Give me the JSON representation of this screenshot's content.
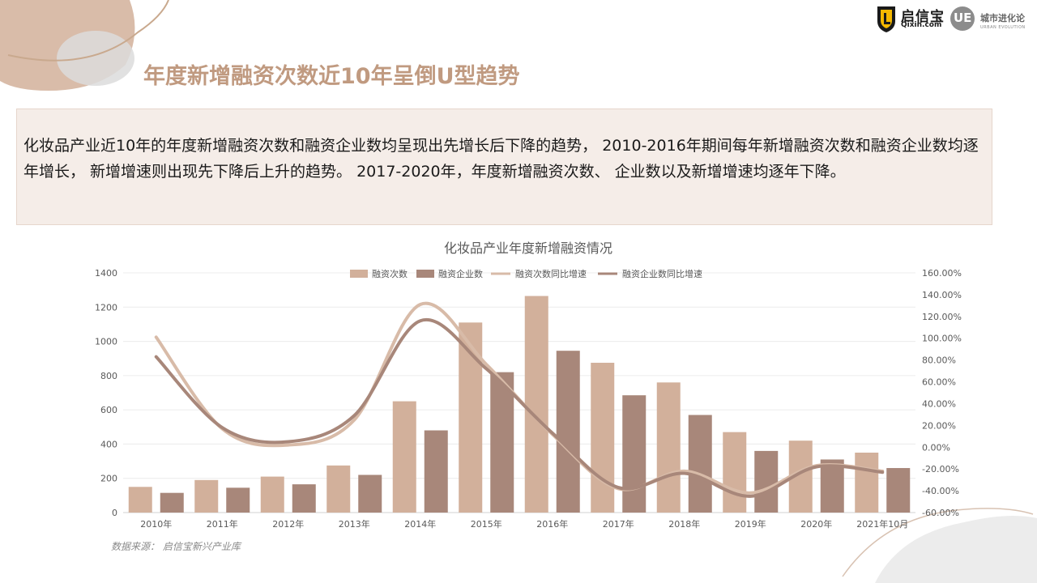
{
  "page": {
    "title": "年度新增融资次数近10年呈倒U型趋势",
    "summary": "化妆品产业近10年的年度新增融资次数和融资企业数均呈现出先增长后下降的趋势， 2010-2016年期间每年新增融资次数和融资企业数均逐年增长， 新增增速则出现先下降后上升的趋势。  2017-2020年，年度新增融资次数、  企业数以及新增增速均逐年下降。",
    "source": "数据来源：  启信宝新兴产业库"
  },
  "logos": {
    "qixin_name": "启信宝",
    "qixin_domain": "Qixin.com",
    "ue_mark": "UE",
    "ue_name": "城市进化论",
    "ue_sub": "URBAN EVOLUTION"
  },
  "colors": {
    "count_bar": "#d2b09b",
    "company_bar": "#a8877a",
    "count_growth_line": "#d8bba8",
    "company_growth_line": "#a8877a",
    "title_accent": "#c09a80"
  },
  "chart_data": {
    "type": "bar",
    "title": "化妆品产业年度新增融资情况",
    "categories": [
      "2010年",
      "2011年",
      "2012年",
      "2013年",
      "2014年",
      "2015年",
      "2016年",
      "2017年",
      "2018年",
      "2019年",
      "2020年",
      "2021年10月"
    ],
    "series": [
      {
        "name": "融资次数",
        "type": "bar",
        "axis": "left",
        "values": [
          150,
          190,
          210,
          275,
          650,
          1110,
          1265,
          875,
          760,
          470,
          420,
          350
        ]
      },
      {
        "name": "融资企业数",
        "type": "bar",
        "axis": "left",
        "values": [
          115,
          145,
          165,
          220,
          480,
          820,
          945,
          685,
          570,
          360,
          310,
          260
        ]
      },
      {
        "name": "融资次数同比增速",
        "type": "line",
        "axis": "right",
        "values": [
          1.01,
          0.17,
          0.02,
          0.25,
          1.31,
          0.76,
          0.12,
          -0.38,
          -0.22,
          -0.42,
          -0.17,
          -0.22
        ]
      },
      {
        "name": "融资企业数同比增速",
        "type": "line",
        "axis": "right",
        "values": [
          0.83,
          0.18,
          0.05,
          0.29,
          1.16,
          0.72,
          0.13,
          -0.37,
          -0.24,
          -0.45,
          -0.18,
          -0.23
        ]
      }
    ],
    "y_left": {
      "min": 0,
      "max": 1400,
      "step": 200,
      "ticks": [
        "0",
        "200",
        "400",
        "600",
        "800",
        "1000",
        "1200",
        "1400"
      ]
    },
    "y_right": {
      "min": -0.6,
      "max": 1.6,
      "step": 0.2,
      "ticks": [
        "-60.00%",
        "-40.00%",
        "-20.00%",
        "0.00%",
        "20.00%",
        "40.00%",
        "60.00%",
        "80.00%",
        "100.00%",
        "120.00%",
        "140.00%",
        "160.00%"
      ]
    },
    "grid": true,
    "legend": "top-center"
  }
}
